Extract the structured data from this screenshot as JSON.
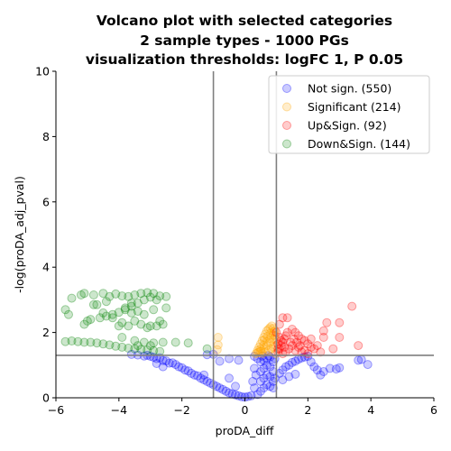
{
  "chart_data": {
    "type": "scatter",
    "title_lines": [
      "Volcano plot with selected categories",
      "2 sample types - 1000 PGs",
      "visualization thresholds: logFC 1, P 0.05"
    ],
    "xlabel": "proDA_diff",
    "ylabel": "-log(proDA_adj_pval)",
    "xlim": [
      -6,
      6
    ],
    "ylim": [
      0,
      10
    ],
    "xticks": [
      "−6",
      "−4",
      "−2",
      "0",
      "2",
      "4",
      "6"
    ],
    "yticks": [
      "0",
      "2",
      "4",
      "6",
      "8",
      "10"
    ],
    "grid": false,
    "legend_position": "top-right",
    "thresholds": {
      "x": [
        -1,
        1
      ],
      "y": 1.301
    },
    "series": [
      {
        "name": "Not sign. (550)",
        "color": "#0000ff",
        "points": [
          [
            -3.6,
            1.33
          ],
          [
            -3.4,
            1.31
          ],
          [
            -3.2,
            1.28
          ],
          [
            -3.0,
            1.27
          ],
          [
            -2.9,
            1.24
          ],
          [
            -2.8,
            1.2
          ],
          [
            -2.7,
            1.22
          ],
          [
            -2.6,
            1.14
          ],
          [
            -2.5,
            1.13
          ],
          [
            -2.4,
            1.06
          ],
          [
            -2.3,
            1.07
          ],
          [
            -2.2,
            1.02
          ],
          [
            -2.1,
            0.95
          ],
          [
            -2.0,
            0.92
          ],
          [
            -1.9,
            0.85
          ],
          [
            -1.8,
            0.82
          ],
          [
            -1.7,
            0.75
          ],
          [
            -1.6,
            0.7
          ],
          [
            -1.5,
            0.67
          ],
          [
            -1.4,
            0.6
          ],
          [
            -1.3,
            0.55
          ],
          [
            -1.2,
            0.5
          ],
          [
            -1.1,
            0.45
          ],
          [
            -1.0,
            0.4
          ],
          [
            -0.9,
            0.35
          ],
          [
            -0.8,
            0.3
          ],
          [
            -0.7,
            0.25
          ],
          [
            -0.6,
            0.2
          ],
          [
            -0.5,
            0.15
          ],
          [
            -0.4,
            0.12
          ],
          [
            -0.3,
            0.09
          ],
          [
            -0.2,
            0.06
          ],
          [
            -0.1,
            0.03
          ],
          [
            0.0,
            0.02
          ],
          [
            0.1,
            0.04
          ],
          [
            0.2,
            0.06
          ],
          [
            -2.6,
            0.95
          ],
          [
            -2.8,
            1.05
          ],
          [
            -3.1,
            1.3
          ],
          [
            -1.3,
            0.7
          ],
          [
            -0.5,
            0.6
          ],
          [
            -0.2,
            1.15
          ],
          [
            -0.5,
            1.2
          ],
          [
            -0.8,
            1.12
          ],
          [
            0.4,
            1.2
          ],
          [
            0.3,
            0.9
          ],
          [
            0.35,
            0.7
          ],
          [
            0.25,
            0.5
          ],
          [
            0.3,
            0.3
          ],
          [
            0.4,
            0.1
          ],
          [
            0.5,
            1.1
          ],
          [
            0.5,
            0.8
          ],
          [
            0.5,
            0.5
          ],
          [
            0.5,
            0.2
          ],
          [
            0.6,
            1.15
          ],
          [
            0.6,
            0.9
          ],
          [
            0.6,
            0.6
          ],
          [
            0.6,
            0.3
          ],
          [
            0.7,
            1.2
          ],
          [
            0.7,
            1.0
          ],
          [
            0.7,
            0.7
          ],
          [
            0.7,
            0.4
          ],
          [
            0.8,
            1.25
          ],
          [
            0.8,
            0.95
          ],
          [
            0.8,
            0.65
          ],
          [
            0.8,
            0.35
          ],
          [
            0.9,
            1.1
          ],
          [
            0.9,
            0.8
          ],
          [
            0.9,
            0.5
          ],
          [
            0.9,
            0.3
          ],
          [
            0.95,
            1.2
          ],
          [
            0.95,
            0.6
          ],
          [
            1.1,
            0.75
          ],
          [
            1.2,
            0.85
          ],
          [
            1.3,
            0.95
          ],
          [
            1.4,
            1.0
          ],
          [
            1.5,
            1.08
          ],
          [
            1.6,
            1.12
          ],
          [
            1.7,
            1.18
          ],
          [
            1.8,
            1.22
          ],
          [
            1.9,
            1.25
          ],
          [
            2.0,
            1.27
          ],
          [
            2.1,
            1.1
          ],
          [
            2.2,
            0.95
          ],
          [
            2.3,
            0.85
          ],
          [
            2.5,
            0.8
          ],
          [
            2.7,
            0.9
          ],
          [
            2.9,
            0.88
          ],
          [
            3.0,
            0.92
          ],
          [
            2.4,
            0.7
          ],
          [
            3.6,
            1.15
          ],
          [
            3.7,
            1.17
          ],
          [
            3.9,
            1.02
          ],
          [
            1.2,
            0.55
          ],
          [
            1.4,
            0.65
          ],
          [
            1.6,
            0.72
          ],
          [
            0.3,
            1.27
          ],
          [
            0.55,
            1.28
          ],
          [
            0.75,
            1.29
          ],
          [
            -1.2,
            1.32
          ],
          [
            -1.0,
            1.33
          ],
          [
            -0.3,
            0.35
          ]
        ]
      },
      {
        "name": "Significant (214)",
        "color": "#ffa500",
        "points": [
          [
            -0.85,
            1.85
          ],
          [
            -0.85,
            1.62
          ],
          [
            -0.88,
            1.47
          ],
          [
            0.35,
            1.35
          ],
          [
            0.4,
            1.45
          ],
          [
            0.45,
            1.55
          ],
          [
            0.5,
            1.65
          ],
          [
            0.55,
            1.75
          ],
          [
            0.6,
            1.85
          ],
          [
            0.65,
            1.95
          ],
          [
            0.7,
            2.05
          ],
          [
            0.75,
            2.1
          ],
          [
            0.8,
            2.15
          ],
          [
            0.85,
            2.2
          ],
          [
            0.9,
            2.12
          ],
          [
            0.95,
            2.05
          ],
          [
            0.4,
            1.38
          ],
          [
            0.5,
            1.42
          ],
          [
            0.6,
            1.5
          ],
          [
            0.7,
            1.6
          ],
          [
            0.8,
            1.7
          ],
          [
            0.9,
            1.8
          ],
          [
            0.95,
            1.9
          ],
          [
            0.55,
            1.36
          ],
          [
            0.65,
            1.4
          ],
          [
            0.75,
            1.45
          ],
          [
            0.85,
            1.5
          ],
          [
            0.9,
            1.55
          ],
          [
            0.5,
            1.5
          ],
          [
            0.6,
            1.62
          ],
          [
            0.7,
            1.72
          ],
          [
            0.8,
            1.82
          ],
          [
            0.9,
            1.92
          ],
          [
            0.45,
            1.4
          ],
          [
            0.98,
            1.35
          ],
          [
            0.98,
            1.6
          ],
          [
            0.98,
            1.78
          ],
          [
            0.62,
            1.78
          ],
          [
            0.72,
            1.88
          ],
          [
            0.82,
            1.98
          ],
          [
            0.92,
            2.02
          ]
        ]
      },
      {
        "name": "Up&Sign. (92)",
        "color": "#ff0000",
        "points": [
          [
            1.05,
            1.4
          ],
          [
            1.1,
            1.5
          ],
          [
            1.15,
            1.6
          ],
          [
            1.2,
            1.7
          ],
          [
            1.25,
            1.8
          ],
          [
            1.3,
            1.9
          ],
          [
            1.35,
            2.0
          ],
          [
            1.1,
            2.25
          ],
          [
            1.2,
            2.45
          ],
          [
            1.35,
            2.45
          ],
          [
            1.5,
            2.1
          ],
          [
            1.6,
            2.0
          ],
          [
            1.7,
            1.9
          ],
          [
            1.8,
            1.8
          ],
          [
            1.9,
            1.75
          ],
          [
            2.0,
            1.65
          ],
          [
            2.1,
            1.55
          ],
          [
            2.2,
            1.5
          ],
          [
            1.05,
            1.65
          ],
          [
            1.15,
            1.75
          ],
          [
            1.25,
            1.55
          ],
          [
            1.4,
            1.5
          ],
          [
            1.5,
            1.6
          ],
          [
            1.6,
            1.45
          ],
          [
            1.7,
            1.55
          ],
          [
            1.8,
            1.4
          ],
          [
            1.9,
            1.45
          ],
          [
            2.0,
            1.35
          ],
          [
            1.45,
            1.7
          ],
          [
            1.55,
            1.8
          ],
          [
            1.65,
            1.7
          ],
          [
            1.75,
            1.6
          ],
          [
            1.3,
            1.4
          ],
          [
            1.2,
            1.35
          ],
          [
            2.1,
            1.8
          ],
          [
            2.3,
            1.6
          ],
          [
            2.5,
            1.85
          ],
          [
            2.5,
            2.05
          ],
          [
            3.0,
            1.85
          ],
          [
            3.0,
            2.3
          ],
          [
            2.6,
            2.3
          ],
          [
            2.8,
            1.5
          ],
          [
            3.4,
            2.8
          ],
          [
            3.6,
            1.6
          ],
          [
            2.4,
            1.4
          ],
          [
            1.1,
            1.85
          ],
          [
            1.0,
            2.0
          ],
          [
            1.05,
            1.5
          ]
        ]
      },
      {
        "name": "Down&Sign. (144)",
        "color": "#008000",
        "points": [
          [
            -5.7,
            1.72
          ],
          [
            -5.5,
            1.74
          ],
          [
            -5.3,
            1.72
          ],
          [
            -5.1,
            1.7
          ],
          [
            -4.9,
            1.7
          ],
          [
            -4.7,
            1.68
          ],
          [
            -4.5,
            1.65
          ],
          [
            -4.3,
            1.62
          ],
          [
            -4.1,
            1.58
          ],
          [
            -3.9,
            1.55
          ],
          [
            -3.7,
            1.52
          ],
          [
            -3.5,
            1.5
          ],
          [
            -3.3,
            1.48
          ],
          [
            -3.1,
            1.46
          ],
          [
            -2.9,
            1.44
          ],
          [
            -2.7,
            1.42
          ],
          [
            -5.7,
            2.7
          ],
          [
            -5.6,
            2.55
          ],
          [
            -5.5,
            3.05
          ],
          [
            -5.2,
            3.15
          ],
          [
            -5.1,
            3.2
          ],
          [
            -4.8,
            3.15
          ],
          [
            -4.5,
            3.2
          ],
          [
            -4.3,
            3.1
          ],
          [
            -4.1,
            3.18
          ],
          [
            -3.9,
            3.12
          ],
          [
            -3.7,
            3.1
          ],
          [
            -3.5,
            3.15
          ],
          [
            -3.3,
            3.2
          ],
          [
            -3.1,
            3.22
          ],
          [
            -2.9,
            3.2
          ],
          [
            -2.7,
            3.12
          ],
          [
            -2.5,
            3.1
          ],
          [
            -3.0,
            3.08
          ],
          [
            -3.2,
            3.0
          ],
          [
            -3.4,
            2.9
          ],
          [
            -3.6,
            2.8
          ],
          [
            -3.8,
            2.7
          ],
          [
            -4.0,
            2.62
          ],
          [
            -4.2,
            2.55
          ],
          [
            -4.4,
            2.5
          ],
          [
            -4.6,
            2.45
          ],
          [
            -4.8,
            2.85
          ],
          [
            -5.0,
            2.35
          ],
          [
            -5.1,
            2.25
          ],
          [
            -4.9,
            2.4
          ],
          [
            -4.7,
            2.85
          ],
          [
            -4.4,
            2.95
          ],
          [
            -4.2,
            2.45
          ],
          [
            -3.9,
            2.3
          ],
          [
            -3.7,
            2.2
          ],
          [
            -3.5,
            2.35
          ],
          [
            -3.3,
            2.25
          ],
          [
            -3.0,
            2.2
          ],
          [
            -2.8,
            2.2
          ],
          [
            -2.7,
            2.35
          ],
          [
            -2.5,
            2.75
          ],
          [
            -3.2,
            2.55
          ],
          [
            -3.4,
            2.65
          ],
          [
            -3.6,
            2.9
          ],
          [
            -3.8,
            2.75
          ],
          [
            -2.9,
            2.7
          ],
          [
            -3.1,
            2.15
          ],
          [
            -2.6,
            2.25
          ],
          [
            -3.9,
            1.85
          ],
          [
            -3.5,
            1.75
          ],
          [
            -3.2,
            1.7
          ],
          [
            -2.9,
            1.68
          ],
          [
            -2.6,
            1.7
          ],
          [
            -2.2,
            1.7
          ],
          [
            -1.8,
            1.68
          ],
          [
            -1.2,
            1.5
          ],
          [
            -3.4,
            1.6
          ],
          [
            -3.0,
            1.6
          ],
          [
            -4.0,
            2.2
          ],
          [
            -4.5,
            2.6
          ],
          [
            -3.6,
            2.6
          ],
          [
            -2.8,
            3.0
          ]
        ]
      }
    ]
  }
}
